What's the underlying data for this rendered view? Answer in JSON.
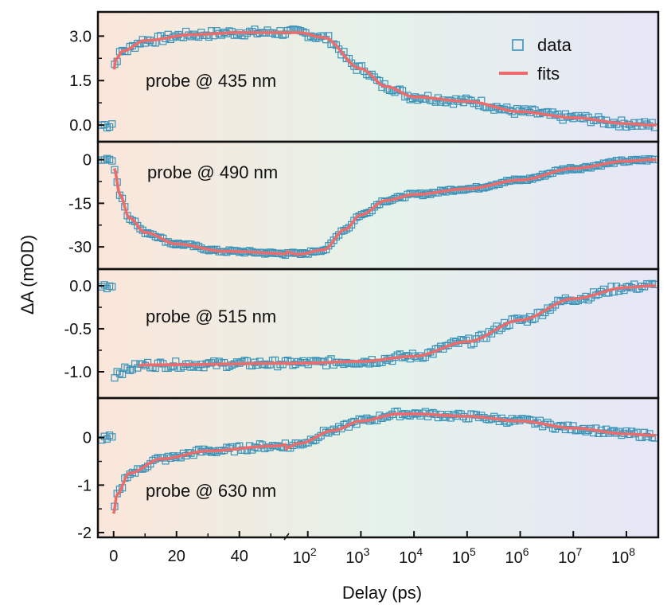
{
  "chart_data": {
    "type": "scatter",
    "xlabel": "Delay (ps)",
    "ylabel": "ΔA (mOD)",
    "x_axis": {
      "linear_segment": {
        "range": [
          -5,
          55
        ],
        "ticks": [
          0,
          20,
          40
        ]
      },
      "log_segment": {
        "range_exponent": [
          1.6,
          8.6
        ],
        "tick_base": "10",
        "tick_exponents": [
          "2",
          "3",
          "4",
          "5",
          "6",
          "7",
          "8"
        ]
      }
    },
    "legend": {
      "position": "top-right",
      "entries": [
        "data",
        "fits"
      ]
    },
    "colors": {
      "data": "#3a93b8",
      "fit": "#ee6b6b",
      "frame": "#111111"
    },
    "background_gradient": [
      "#fbe6da",
      "#e5f2ea",
      "#e6e6f6"
    ],
    "panels": [
      {
        "label": "probe @ 435 nm",
        "ylim": [
          -0.4,
          3.6
        ],
        "yticks": [
          0.0,
          1.5,
          3.0
        ],
        "ytick_labels": [
          "0.0",
          "1.5",
          "3.0"
        ],
        "key_points": [
          [
            -5,
            0.0
          ],
          [
            -0.6,
            0.0
          ],
          [
            -0.2,
            0.3
          ],
          [
            0,
            1.7
          ],
          [
            0.5,
            2.2
          ],
          [
            3,
            2.5
          ],
          [
            10,
            2.85
          ],
          [
            25,
            3.05
          ],
          [
            40,
            3.12
          ],
          [
            70,
            3.12
          ],
          [
            200,
            2.95
          ],
          [
            1000,
            1.9
          ],
          [
            3000,
            1.3
          ],
          [
            10000,
            0.95
          ],
          [
            100000.0,
            0.8
          ],
          [
            1000000.0,
            0.45
          ],
          [
            10000000.0,
            0.25
          ],
          [
            100000000.0,
            0.05
          ],
          [
            300000000.0,
            0.0
          ]
        ],
        "noise": 0.12
      },
      {
        "label": "probe @ 490 nm",
        "ylim": [
          -36,
          4
        ],
        "yticks": [
          0,
          -15,
          -30
        ],
        "ytick_labels": [
          "0",
          "-15",
          "-30"
        ],
        "key_points": [
          [
            -5,
            0
          ],
          [
            -0.3,
            0
          ],
          [
            0.2,
            -3
          ],
          [
            2,
            -12
          ],
          [
            5,
            -20
          ],
          [
            10,
            -25
          ],
          [
            20,
            -29
          ],
          [
            35,
            -31.5
          ],
          [
            70,
            -32.5
          ],
          [
            200,
            -31
          ],
          [
            500,
            -24
          ],
          [
            1000,
            -19
          ],
          [
            3000,
            -14
          ],
          [
            10000,
            -12
          ],
          [
            100000.0,
            -10
          ],
          [
            1000000.0,
            -7
          ],
          [
            10000000.0,
            -3
          ],
          [
            100000000.0,
            -0.5
          ],
          [
            300000000.0,
            0
          ]
        ],
        "noise": 0.5
      },
      {
        "label": "probe @ 515 nm",
        "ylim": [
          -1.25,
          0.12
        ],
        "yticks": [
          0.0,
          -0.5,
          -1.0
        ],
        "ytick_labels": [
          "0.0",
          "-0.5",
          "-1.0"
        ],
        "key_points": [
          [
            -5,
            0.0
          ],
          [
            -0.5,
            0.0
          ],
          [
            0,
            -1.05
          ],
          [
            1,
            -1.0
          ],
          [
            10,
            -0.92
          ],
          [
            70,
            -0.9
          ],
          [
            1000,
            -0.88
          ],
          [
            10000,
            -0.82
          ],
          [
            100000.0,
            -0.65
          ],
          [
            1000000.0,
            -0.4
          ],
          [
            10000000.0,
            -0.15
          ],
          [
            100000000.0,
            -0.02
          ],
          [
            300000000.0,
            0
          ]
        ],
        "noise": 0.04
      },
      {
        "label": "probe @ 630 nm",
        "ylim": [
          -2.0,
          0.7
        ],
        "yticks": [
          0,
          -1,
          -2
        ],
        "ytick_labels": [
          "0",
          "-1",
          "-2"
        ],
        "key_points": [
          [
            -5,
            0.0
          ],
          [
            -0.3,
            0.0
          ],
          [
            0,
            -1.6
          ],
          [
            1,
            -1.2
          ],
          [
            5,
            -0.75
          ],
          [
            15,
            -0.45
          ],
          [
            30,
            -0.28
          ],
          [
            50,
            -0.18
          ],
          [
            70,
            -0.12
          ],
          [
            300,
            0.15
          ],
          [
            1000,
            0.35
          ],
          [
            5000,
            0.5
          ],
          [
            10000,
            0.5
          ],
          [
            100000.0,
            0.45
          ],
          [
            1000000.0,
            0.35
          ],
          [
            10000000.0,
            0.2
          ],
          [
            100000000.0,
            0.08
          ],
          [
            300000000.0,
            0.05
          ]
        ],
        "noise": 0.06
      }
    ]
  }
}
